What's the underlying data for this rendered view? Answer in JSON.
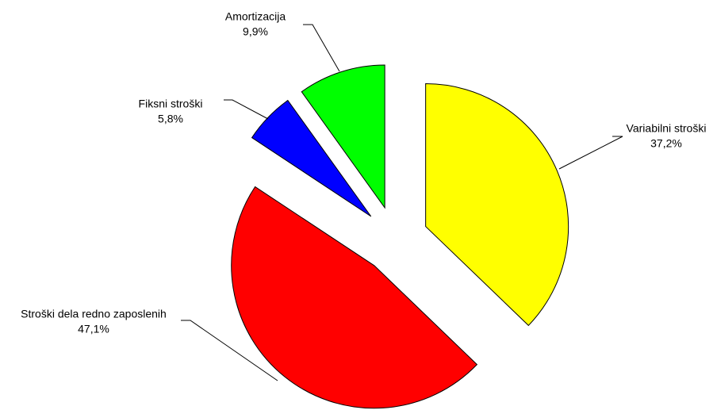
{
  "chart_data": {
    "type": "pie",
    "categories": [
      "Variabilni stroški",
      "Stroški dela redno zaposlenih",
      "Fiksni stroški",
      "Amortizacija"
    ],
    "values": [
      37.2,
      47.1,
      5.8,
      9.9
    ],
    "value_labels": [
      "37,2%",
      "47,1%",
      "5,8%",
      "9,9%"
    ],
    "colors": [
      "#ffff00",
      "#ff0000",
      "#0000ff",
      "#00ff00"
    ],
    "exploded": true
  }
}
